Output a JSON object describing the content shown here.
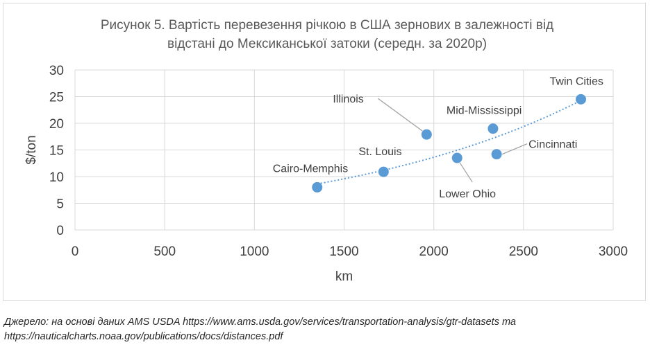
{
  "chart_data": {
    "type": "scatter",
    "title": [
      "Рисунок 5. Вартість перевезення річкою в США зернових в залежності від",
      "відстані до Мексиканської затоки (середн. за 2020р)"
    ],
    "xlabel": "km",
    "ylabel": "$/ton",
    "xlim": [
      0,
      3000
    ],
    "ylim": [
      0,
      30
    ],
    "x_ticks": [
      0,
      500,
      1000,
      1500,
      2000,
      2500,
      3000
    ],
    "y_ticks": [
      0,
      5,
      10,
      15,
      20,
      25,
      30
    ],
    "grid": true,
    "point_color": "#5b9bd5",
    "trendline": {
      "style": "dotted",
      "type": "exponential",
      "color": "#5b9bd5",
      "x_range": [
        1350,
        2820
      ]
    },
    "points": [
      {
        "label": "Cairo-Memphis",
        "x": 1350,
        "y": 8.0
      },
      {
        "label": "St. Louis",
        "x": 1720,
        "y": 10.9
      },
      {
        "label": "Illinois",
        "x": 1960,
        "y": 17.9
      },
      {
        "label": "Lower Ohio",
        "x": 2130,
        "y": 13.5
      },
      {
        "label": "Mid-Mississippi",
        "x": 2330,
        "y": 19.0
      },
      {
        "label": "Cincinnati",
        "x": 2350,
        "y": 14.2
      },
      {
        "label": "Twin Cities",
        "x": 2820,
        "y": 24.5
      }
    ]
  },
  "source_note": [
    "Джерело: на основі даних AMS USDA https://www.ams.usda.gov/services/transportation-analysis/gtr-datasets та",
    "https://nauticalcharts.noaa.gov/publications/docs/distances.pdf"
  ]
}
